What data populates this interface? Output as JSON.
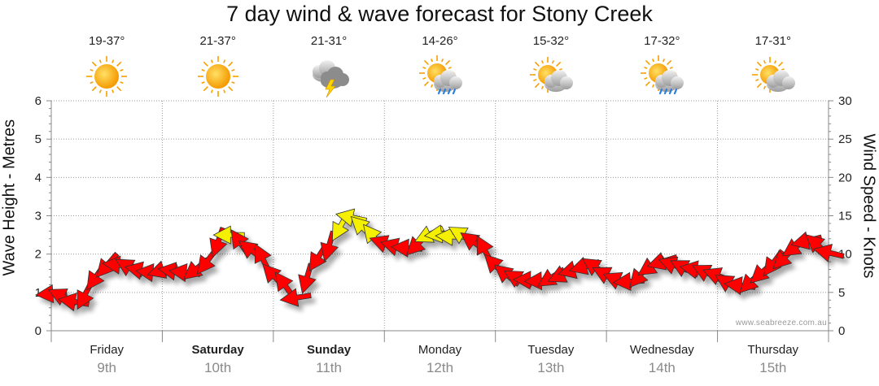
{
  "chart_data": {
    "type": "line",
    "title": "7 day wind & wave forecast for Stony Creek",
    "ylabel_left": "Wave Height - Metres",
    "ylabel_right": "Wind Speed - Knots",
    "ylim_left": [
      0,
      6
    ],
    "ylim_right": [
      0,
      30
    ],
    "yticks_left": [
      "0",
      "1",
      "2",
      "3",
      "4",
      "5",
      "6"
    ],
    "yticks_right": [
      "0",
      "5",
      "10",
      "15",
      "20",
      "25",
      "30"
    ],
    "grid": true,
    "days": [
      {
        "name": "Friday",
        "date": "9th",
        "temp": "19-37°",
        "icon": "sunny-icon",
        "bold": false
      },
      {
        "name": "Saturday",
        "date": "10th",
        "temp": "21-37°",
        "icon": "sunny-icon",
        "bold": true
      },
      {
        "name": "Sunday",
        "date": "11th",
        "temp": "21-31°",
        "icon": "storm-icon",
        "bold": true
      },
      {
        "name": "Monday",
        "date": "12th",
        "temp": "14-26°",
        "icon": "sun-rain-icon",
        "bold": false
      },
      {
        "name": "Tuesday",
        "date": "13th",
        "temp": "15-32°",
        "icon": "partly-cloudy-icon",
        "bold": false
      },
      {
        "name": "Wednesday",
        "date": "14th",
        "temp": "17-32°",
        "icon": "sun-rain-icon",
        "bold": false
      },
      {
        "name": "Thursday",
        "date": "15th",
        "temp": "17-31°",
        "icon": "partly-cloudy-icon",
        "bold": false
      }
    ],
    "series": [
      {
        "name": "Wind Speed",
        "axis": "right",
        "x_unit": "days from start of Friday 9th",
        "x": [
          0.0,
          0.1,
          0.2,
          0.3,
          0.4,
          0.5,
          0.6,
          0.7,
          0.8,
          0.9,
          1.0,
          1.1,
          1.2,
          1.3,
          1.4,
          1.5,
          1.6,
          1.7,
          1.8,
          1.9,
          2.0,
          2.1,
          2.2,
          2.3,
          2.4,
          2.5,
          2.6,
          2.7,
          2.8,
          2.9,
          3.0,
          3.1,
          3.2,
          3.3,
          3.4,
          3.5,
          3.6,
          3.7,
          3.8,
          3.9,
          4.0,
          4.1,
          4.2,
          4.3,
          4.4,
          4.5,
          4.6,
          4.7,
          4.8,
          4.9,
          5.0,
          5.1,
          5.2,
          5.3,
          5.4,
          5.5,
          5.6,
          5.7,
          5.8,
          5.9,
          6.0,
          6.1,
          6.2,
          6.3,
          6.4,
          6.5,
          6.6,
          6.7,
          6.8,
          6.9,
          7.0
        ],
        "values": [
          4.8,
          4.5,
          3.8,
          4.6,
          7.0,
          8.5,
          8.6,
          8.3,
          7.9,
          7.6,
          7.9,
          7.8,
          7.6,
          8.0,
          9.0,
          11.5,
          12.5,
          11.5,
          10.5,
          9.5,
          7.2,
          6.0,
          4.3,
          6.8,
          9.5,
          11.0,
          13.5,
          14.8,
          13.5,
          12.3,
          11.4,
          11.0,
          10.8,
          11.3,
          12.5,
          12.6,
          12.3,
          12.5,
          11.6,
          10.6,
          8.5,
          7.3,
          6.8,
          6.6,
          6.5,
          6.9,
          7.3,
          7.9,
          8.4,
          8.3,
          7.3,
          6.6,
          6.4,
          7.2,
          8.4,
          9.0,
          8.6,
          8.2,
          8.0,
          7.6,
          7.2,
          6.2,
          5.9,
          6.4,
          7.6,
          8.8,
          9.5,
          10.9,
          11.7,
          11.2,
          10.2
        ],
        "color_rule": "red when below 12 knots, yellow 12 knots and above"
      }
    ]
  },
  "watermark": "www.seabreeze.com.au",
  "colors": {
    "strong_wind": "#f5f000",
    "light_wind": "#ff0000",
    "grid": "#9a9a9a",
    "axis": "#888888"
  }
}
